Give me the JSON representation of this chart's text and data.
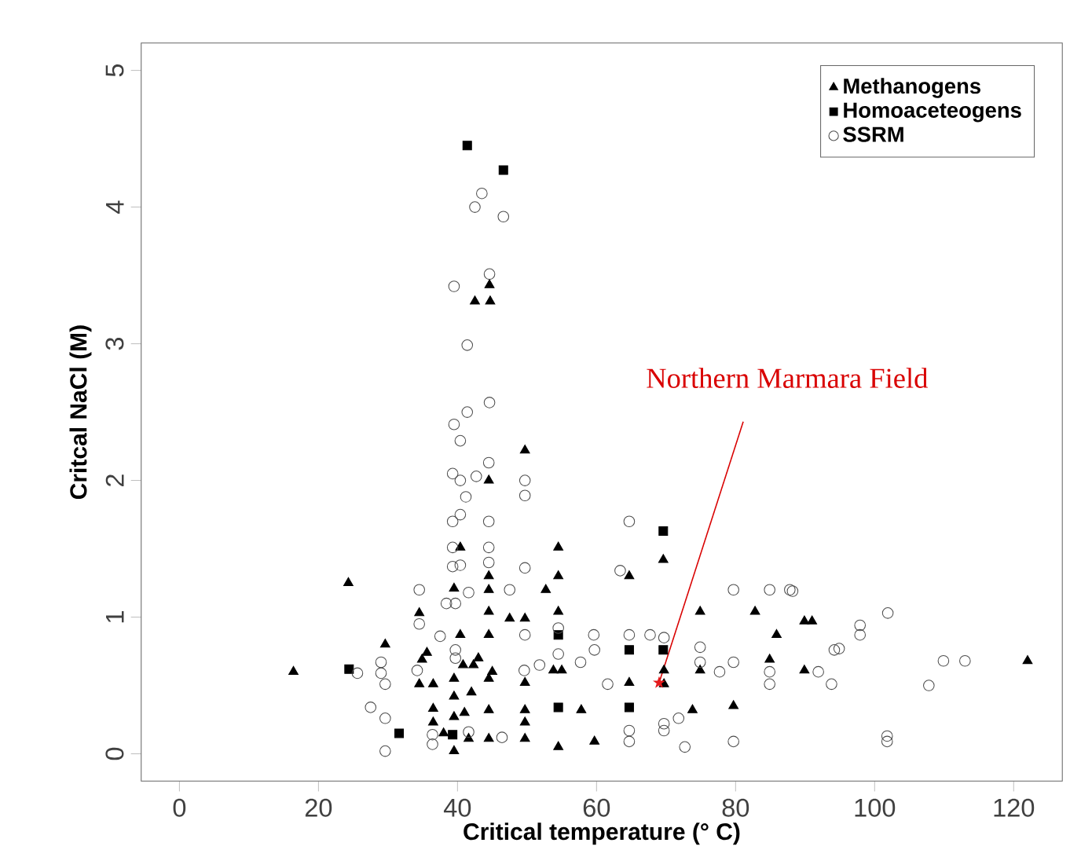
{
  "chart_data": {
    "type": "scatter",
    "xlabel": "Critical temperature (° C)",
    "ylabel": "Critcal NaCl (M)",
    "xlim": [
      -5.5,
      127
    ],
    "ylim": [
      -0.2,
      5.2
    ],
    "xticks": [
      0,
      20,
      40,
      60,
      80,
      100,
      120
    ],
    "yticks": [
      0,
      1,
      2,
      3,
      4,
      5
    ],
    "grid": false,
    "legend": "top right",
    "annotations": [
      {
        "text": "Northern Marmara Field",
        "x": 69,
        "y": 0.52
      }
    ],
    "series": [
      {
        "name": "Methanogens",
        "color": "#000000",
        "marker": "triangle",
        "x": [
          44.6,
          42.5,
          44.7,
          24.3,
          16.4,
          29.6,
          34.5,
          35.6,
          34.9,
          34.5,
          36.5,
          40.4,
          39.5,
          40.4,
          39.5,
          36.5,
          36.5,
          39.5,
          39.5,
          39.5,
          40.8,
          49.7,
          44.5,
          54.5,
          44.5,
          54.5,
          52.7,
          44.5,
          64.7,
          69.6,
          44.5,
          47.5,
          49.7,
          54.5,
          74.9,
          82.8,
          89.9,
          91,
          85.9,
          44.5,
          84.9,
          89.9,
          74.9,
          69.7,
          69.7,
          64.7,
          49.7,
          53.8,
          55,
          57.8,
          49.7,
          49.7,
          49.7,
          44.5,
          54.5,
          59.7,
          73.8,
          79.7,
          44.5,
          41.6,
          42.3,
          44.5,
          122,
          42,
          43,
          41,
          45,
          38
        ],
        "values": [
          3.43,
          3.31,
          3.31,
          1.25,
          0.6,
          0.8,
          1.03,
          0.74,
          0.69,
          0.51,
          0.51,
          1.51,
          1.21,
          0.87,
          0.55,
          0.33,
          0.23,
          0.42,
          0.27,
          0.02,
          0.65,
          2.22,
          2.0,
          1.51,
          1.3,
          1.3,
          1.2,
          1.2,
          1.3,
          1.42,
          1.04,
          0.99,
          0.99,
          1.04,
          1.04,
          1.04,
          0.97,
          0.97,
          0.87,
          0.87,
          0.69,
          0.61,
          0.61,
          0.61,
          0.51,
          0.52,
          0.52,
          0.61,
          0.61,
          0.32,
          0.32,
          0.23,
          0.11,
          0.32,
          0.05,
          0.09,
          0.32,
          0.35,
          0.11,
          0.11,
          0.65,
          0.55,
          0.68,
          0.45,
          0.7,
          0.3,
          0.6,
          0.15
        ]
      },
      {
        "name": "Homoaceteogens",
        "color": "#000000",
        "marker": "square",
        "x": [
          41.4,
          46.6,
          24.4,
          31.6,
          39.3,
          69.6,
          54.5,
          64.7,
          69.6,
          54.5,
          64.7
        ],
        "values": [
          4.45,
          4.27,
          0.62,
          0.15,
          0.14,
          1.63,
          0.87,
          0.76,
          0.76,
          0.34,
          0.34
        ]
      },
      {
        "name": "SSRM",
        "color": "#4d4d4d",
        "marker": "circle",
        "x": [
          43.5,
          42.5,
          46.6,
          44.6,
          39.5,
          41.4,
          44.6,
          41.4,
          39.5,
          40.4,
          39.3,
          40.4,
          41.2,
          40.4,
          39.3,
          39.3,
          39.3,
          34.5,
          38.4,
          39.7,
          34.5,
          37.5,
          29,
          29,
          29.6,
          25.6,
          27.5,
          29.6,
          29.6,
          36.4,
          36.4,
          34.2,
          39.7,
          39.7,
          44.5,
          49.7,
          49.7,
          42.7,
          44.5,
          44.5,
          64.7,
          40.4,
          49.7,
          63.4,
          44.5,
          41.6,
          47.5,
          79.7,
          84.9,
          87.8,
          54.5,
          49.7,
          59.6,
          64.7,
          67.7,
          69.7,
          59.7,
          54.5,
          74.9,
          79.7,
          74.9,
          57.7,
          51.8,
          49.6,
          77.7,
          84.9,
          84.9,
          91.9,
          93.8,
          94.2,
          61.6,
          69.7,
          71.8,
          69.7,
          64.7,
          64.7,
          72.7,
          79.7,
          46.4,
          41.6,
          88.2,
          101.9,
          97.9,
          97.9,
          94.9,
          107.8,
          109.9,
          113,
          101.8,
          101.8
        ],
        "values": [
          4.1,
          4.0,
          3.93,
          3.51,
          3.42,
          2.99,
          2.57,
          2.5,
          2.41,
          2.29,
          2.05,
          2.0,
          1.88,
          1.75,
          1.7,
          1.51,
          1.37,
          1.2,
          1.1,
          1.1,
          0.95,
          0.86,
          0.67,
          0.59,
          0.51,
          0.59,
          0.34,
          0.26,
          0.02,
          0.14,
          0.07,
          0.61,
          0.76,
          0.7,
          2.13,
          2.0,
          1.89,
          2.03,
          1.7,
          1.51,
          1.7,
          1.38,
          1.36,
          1.34,
          1.4,
          1.18,
          1.2,
          1.2,
          1.2,
          1.2,
          0.92,
          0.87,
          0.87,
          0.87,
          0.87,
          0.85,
          0.76,
          0.73,
          0.78,
          0.67,
          0.67,
          0.67,
          0.65,
          0.61,
          0.6,
          0.6,
          0.51,
          0.6,
          0.51,
          0.76,
          0.51,
          0.22,
          0.26,
          0.17,
          0.17,
          0.09,
          0.05,
          0.09,
          0.12,
          0.16,
          1.19,
          1.03,
          0.94,
          0.87,
          0.77,
          0.5,
          0.68,
          0.68,
          0.13,
          0.09
        ]
      },
      {
        "color": "#e41a1c",
        "marker": "star",
        "x": [
          69
        ],
        "values": [
          0.52
        ]
      }
    ]
  }
}
